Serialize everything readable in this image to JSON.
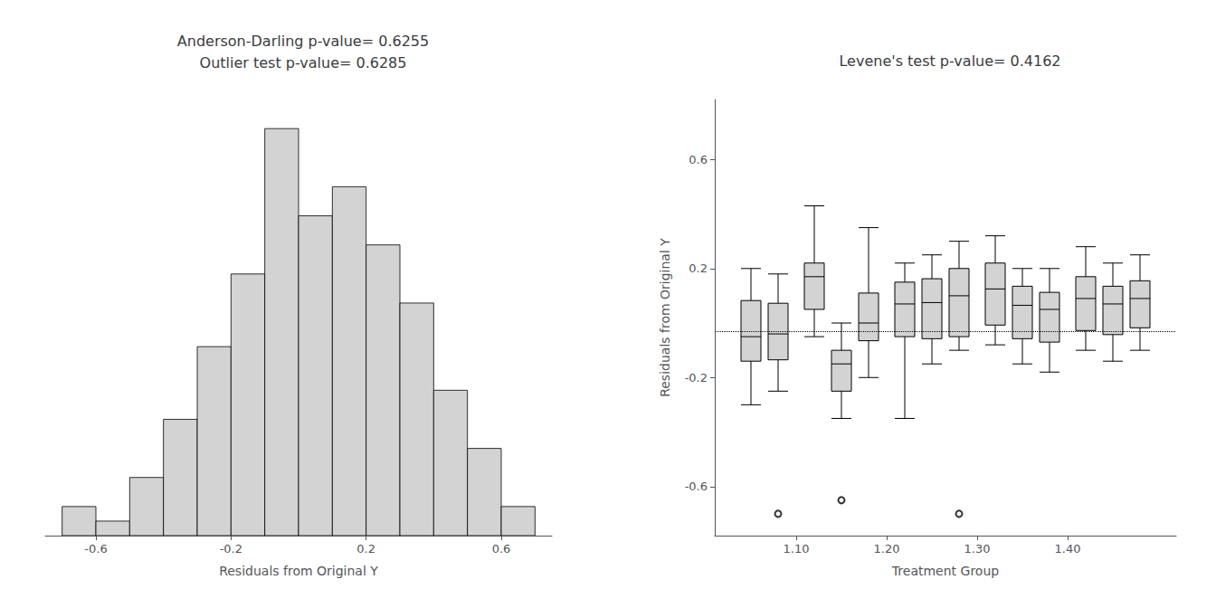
{
  "chart_data": [
    {
      "type": "histogram",
      "title": "Anderson-Darling p-value= 0.6255",
      "subtitle": "Outlier test p-value= 0.6285",
      "xlabel": "Residuals from Original Y",
      "bins": [
        -0.7,
        -0.6,
        -0.5,
        -0.4,
        -0.3,
        -0.2,
        -0.1,
        0.0,
        0.1,
        0.2,
        0.3,
        0.4,
        0.5,
        0.6,
        0.7
      ],
      "values": [
        2,
        1,
        4,
        8,
        13,
        18,
        28,
        22,
        24,
        20,
        16,
        10,
        6,
        2
      ],
      "color": "#d3d3d3",
      "xlim": [
        -0.75,
        0.75
      ],
      "xticks": [
        -0.6,
        -0.2,
        0.2,
        0.6
      ],
      "ylim": [
        0,
        30
      ],
      "tick_labels": "x",
      "grid": false
    },
    {
      "type": "boxplot",
      "title": "Levene's test p-value= 0.4162",
      "xlabel": "Treatment Group",
      "ylabel": "Residuals from Original Y",
      "x": [
        1.05,
        1.08,
        1.12,
        1.15,
        1.18,
        1.22,
        1.25,
        1.28,
        1.32,
        1.35,
        1.38,
        1.42,
        1.45,
        1.48
      ],
      "boxes": [
        [
          -0.3,
          -0.14,
          -0.05,
          0.0825,
          0.2
        ],
        [
          -0.25,
          -0.135,
          -0.04,
          0.0725,
          0.18
        ],
        [
          -0.05,
          0.05,
          0.17,
          0.22,
          0.43
        ],
        [
          -0.35,
          -0.25,
          -0.15,
          -0.1,
          0.0
        ],
        [
          -0.2,
          -0.065,
          0.0,
          0.11,
          0.35
        ],
        [
          -0.35,
          -0.05,
          0.07,
          0.15,
          0.22
        ],
        [
          -0.15,
          -0.0575,
          0.075,
          0.1625,
          0.25
        ],
        [
          -0.1,
          -0.05,
          0.1,
          0.2,
          0.3
        ],
        [
          -0.08,
          -0.0075,
          0.125,
          0.22,
          0.32
        ],
        [
          -0.15,
          -0.0575,
          0.065,
          0.135,
          0.2
        ],
        [
          -0.18,
          -0.07,
          0.05,
          0.1125,
          0.2
        ],
        [
          -0.1,
          -0.0275,
          0.09,
          0.17,
          0.28
        ],
        [
          -0.14,
          -0.0425,
          0.07,
          0.135,
          0.22
        ],
        [
          -0.1,
          -0.0175,
          0.09,
          0.155,
          0.25
        ]
      ],
      "outliers": [
        [],
        [
          -0.7
        ],
        [],
        [
          -0.65
        ],
        [],
        [],
        [],
        [
          -0.7
        ],
        [],
        [],
        [],
        [],
        [],
        []
      ],
      "color": "#d3d3d3",
      "hline": -0.03,
      "xlim": [
        1.01,
        1.52
      ],
      "xticks": [
        {
          "value": 1.1,
          "label": "1.10"
        },
        {
          "value": 1.2,
          "label": "1.20"
        },
        {
          "value": 1.3,
          "label": "1.30"
        },
        {
          "value": 1.4,
          "label": "1.40"
        }
      ],
      "ylim": [
        -0.78,
        0.82
      ],
      "yticks": [
        -0.6,
        -0.2,
        0.2,
        0.6
      ],
      "grid": false
    }
  ]
}
